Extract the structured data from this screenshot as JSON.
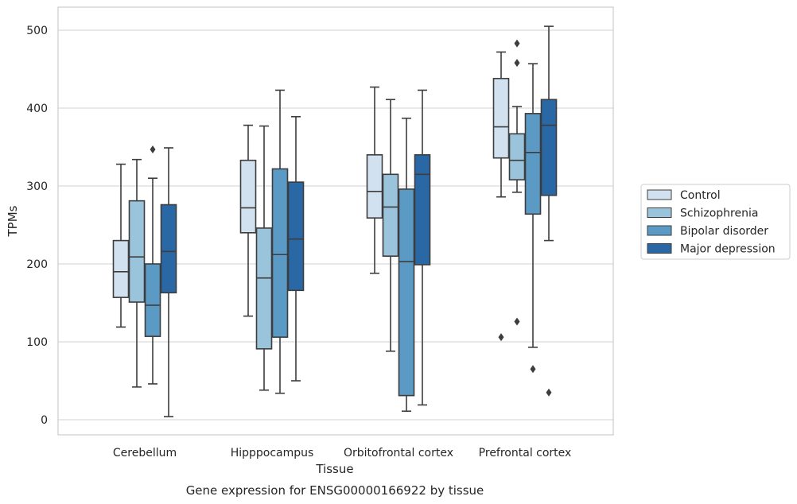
{
  "chart_data": {
    "type": "box",
    "caption": "Gene expression for ENSG00000166922 by tissue",
    "xlabel": "Tissue",
    "ylabel": "TPMs",
    "ylim": [
      -20,
      530
    ],
    "yticks": [
      0,
      100,
      200,
      300,
      400,
      500
    ],
    "grid": true,
    "legend_position": "right",
    "categories": [
      "Cerebellum",
      "Hipppocampus",
      "Orbitofrontal cortex",
      "Prefrontal cortex"
    ],
    "series": [
      {
        "name": "Control",
        "color": "#d1e1f0",
        "boxes": [
          {
            "whisker_low": 119,
            "q1": 157,
            "median": 190,
            "q3": 230,
            "whisker_high": 328,
            "outliers": []
          },
          {
            "whisker_low": 133,
            "q1": 240,
            "median": 272,
            "q3": 333,
            "whisker_high": 378,
            "outliers": []
          },
          {
            "whisker_low": 188,
            "q1": 259,
            "median": 293,
            "q3": 340,
            "whisker_high": 427,
            "outliers": []
          },
          {
            "whisker_low": 286,
            "q1": 336,
            "median": 376,
            "q3": 438,
            "whisker_high": 472,
            "outliers": [
              106
            ]
          }
        ]
      },
      {
        "name": "Schizophrenia",
        "color": "#9ac3dc",
        "boxes": [
          {
            "whisker_low": 42,
            "q1": 151,
            "median": 209,
            "q3": 281,
            "whisker_high": 334,
            "outliers": []
          },
          {
            "whisker_low": 38,
            "q1": 91,
            "median": 182,
            "q3": 246,
            "whisker_high": 377,
            "outliers": []
          },
          {
            "whisker_low": 88,
            "q1": 210,
            "median": 273,
            "q3": 315,
            "whisker_high": 411,
            "outliers": []
          },
          {
            "whisker_low": 292,
            "q1": 308,
            "median": 333,
            "q3": 367,
            "whisker_high": 402,
            "outliers": [
              126,
              458,
              483
            ]
          }
        ]
      },
      {
        "name": "Bipolar disorder",
        "color": "#5a9ac5",
        "boxes": [
          {
            "whisker_low": 46,
            "q1": 107,
            "median": 147,
            "q3": 200,
            "whisker_high": 310,
            "outliers": [
              347
            ]
          },
          {
            "whisker_low": 34,
            "q1": 106,
            "median": 212,
            "q3": 322,
            "whisker_high": 423,
            "outliers": []
          },
          {
            "whisker_low": 11,
            "q1": 31,
            "median": 203,
            "q3": 296,
            "whisker_high": 387,
            "outliers": []
          },
          {
            "whisker_low": 93,
            "q1": 264,
            "median": 343,
            "q3": 393,
            "whisker_high": 457,
            "outliers": [
              65
            ]
          }
        ]
      },
      {
        "name": "Major depression",
        "color": "#2a67a5",
        "boxes": [
          {
            "whisker_low": 4,
            "q1": 163,
            "median": 216,
            "q3": 276,
            "whisker_high": 349,
            "outliers": []
          },
          {
            "whisker_low": 50,
            "q1": 166,
            "median": 232,
            "q3": 305,
            "whisker_high": 389,
            "outliers": []
          },
          {
            "whisker_low": 19,
            "q1": 199,
            "median": 315,
            "q3": 340,
            "whisker_high": 423,
            "outliers": []
          },
          {
            "whisker_low": 230,
            "q1": 288,
            "median": 378,
            "q3": 411,
            "whisker_high": 505,
            "outliers": [
              35
            ]
          }
        ]
      }
    ]
  }
}
